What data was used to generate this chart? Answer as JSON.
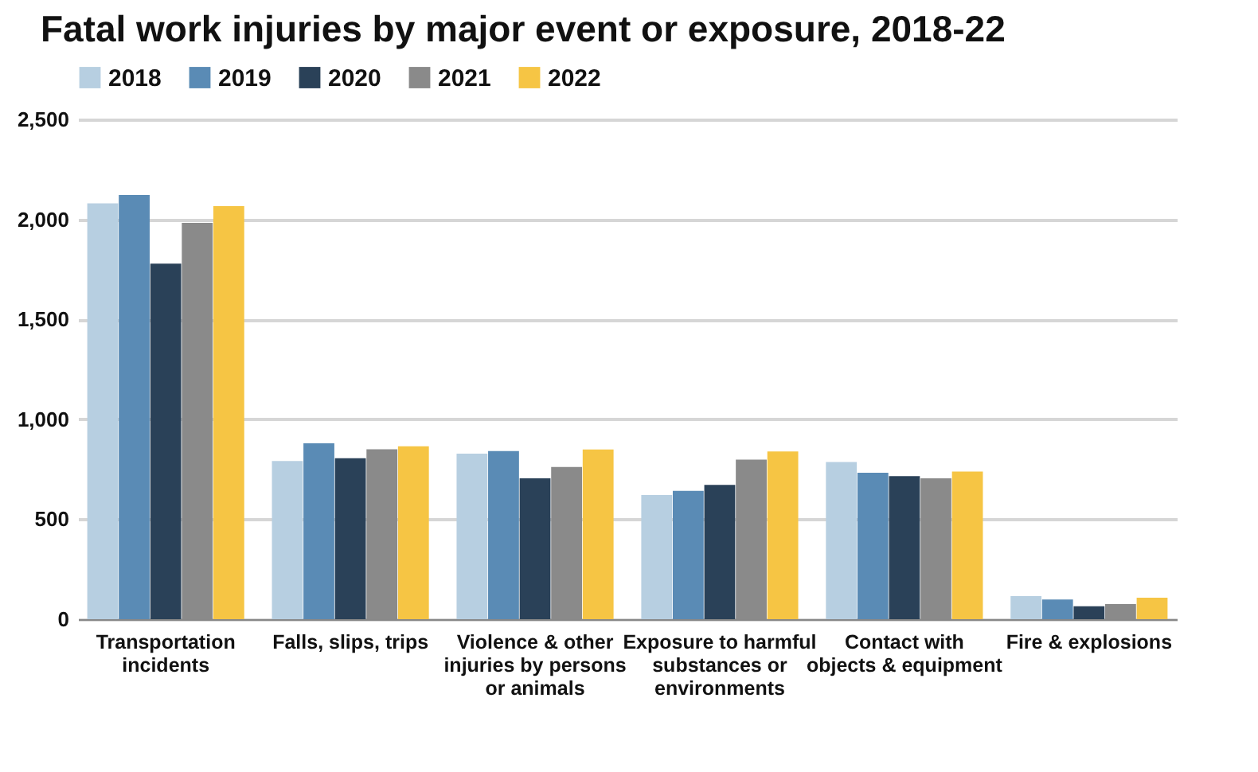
{
  "chart_data": {
    "type": "bar",
    "title": "Fatal work injuries by major event or exposure, 2018-22",
    "categories": [
      "Transportation incidents",
      "Falls, slips, trips",
      "Violence & other injuries by persons or animals",
      "Exposure to harmful substances or environments",
      "Contact with objects & equipment",
      "Fire & explosions"
    ],
    "series": [
      {
        "name": "2018",
        "color": "#b7cfe1",
        "values": [
          2080,
          791,
          828,
          621,
          786,
          115
        ]
      },
      {
        "name": "2019",
        "color": "#5a8bb5",
        "values": [
          2122,
          880,
          841,
          642,
          732,
          99
        ]
      },
      {
        "name": "2020",
        "color": "#2a4158",
        "values": [
          1778,
          805,
          705,
          672,
          716,
          65
        ]
      },
      {
        "name": "2021",
        "color": "#8a8a8a",
        "values": [
          1982,
          850,
          761,
          798,
          705,
          76
        ]
      },
      {
        "name": "2022",
        "color": "#f6c544",
        "values": [
          2066,
          865,
          849,
          839,
          738,
          107
        ]
      }
    ],
    "ylim": [
      0,
      2500
    ],
    "yticks": [
      0,
      500,
      {
        "value": 1000,
        "label": "1,000"
      },
      {
        "value": 1500,
        "label": "1,500"
      },
      {
        "value": 2000,
        "label": "2,000"
      },
      {
        "value": 2500,
        "label": "2,500"
      }
    ],
    "grid": "y",
    "legend": "top"
  }
}
